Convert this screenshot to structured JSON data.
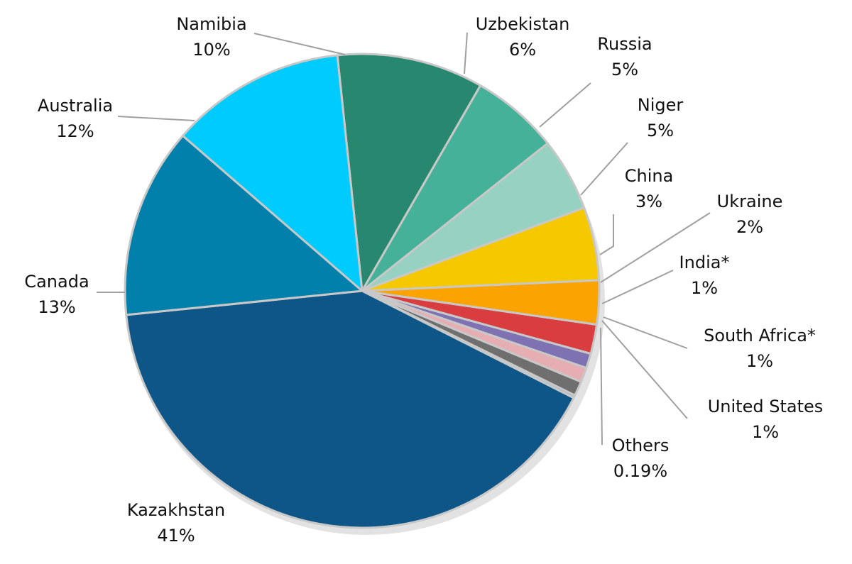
{
  "chart_data": {
    "type": "pie",
    "title": "",
    "start_angle_deg": -96,
    "direction": "clockwise",
    "slices": [
      {
        "name": "Namibia",
        "value": 10,
        "label_value": "10%",
        "color": "#27876f"
      },
      {
        "name": "Uzbekistan",
        "value": 6,
        "label_value": "6%",
        "color": "#46b199"
      },
      {
        "name": "Russia",
        "value": 5,
        "label_value": "5%",
        "color": "#96d1c1"
      },
      {
        "name": "Niger",
        "value": 5,
        "label_value": "5%",
        "color": "#f5c800"
      },
      {
        "name": "China",
        "value": 3,
        "label_value": "3%",
        "color": "#fba300"
      },
      {
        "name": "Ukraine",
        "value": 2,
        "label_value": "2%",
        "color": "#d93d3f"
      },
      {
        "name": "India*",
        "value": 1,
        "label_value": "1%",
        "color": "#7f72b3"
      },
      {
        "name": "South Africa*",
        "value": 1,
        "label_value": "1%",
        "color": "#e6aeb2"
      },
      {
        "name": "United States",
        "value": 1,
        "label_value": "1%",
        "color": "#6f6f6f"
      },
      {
        "name": "Others",
        "value": 0.19,
        "label_value": "0.19%",
        "color": "#9fb0c6"
      },
      {
        "name": "Kazakhstan",
        "value": 41,
        "label_value": "41%",
        "color": "#0f5688"
      },
      {
        "name": "Canada",
        "value": 13,
        "label_value": "13%",
        "color": "#0080aa"
      },
      {
        "name": "Australia",
        "value": 12,
        "label_value": "12%",
        "color": "#00cbff"
      }
    ]
  }
}
